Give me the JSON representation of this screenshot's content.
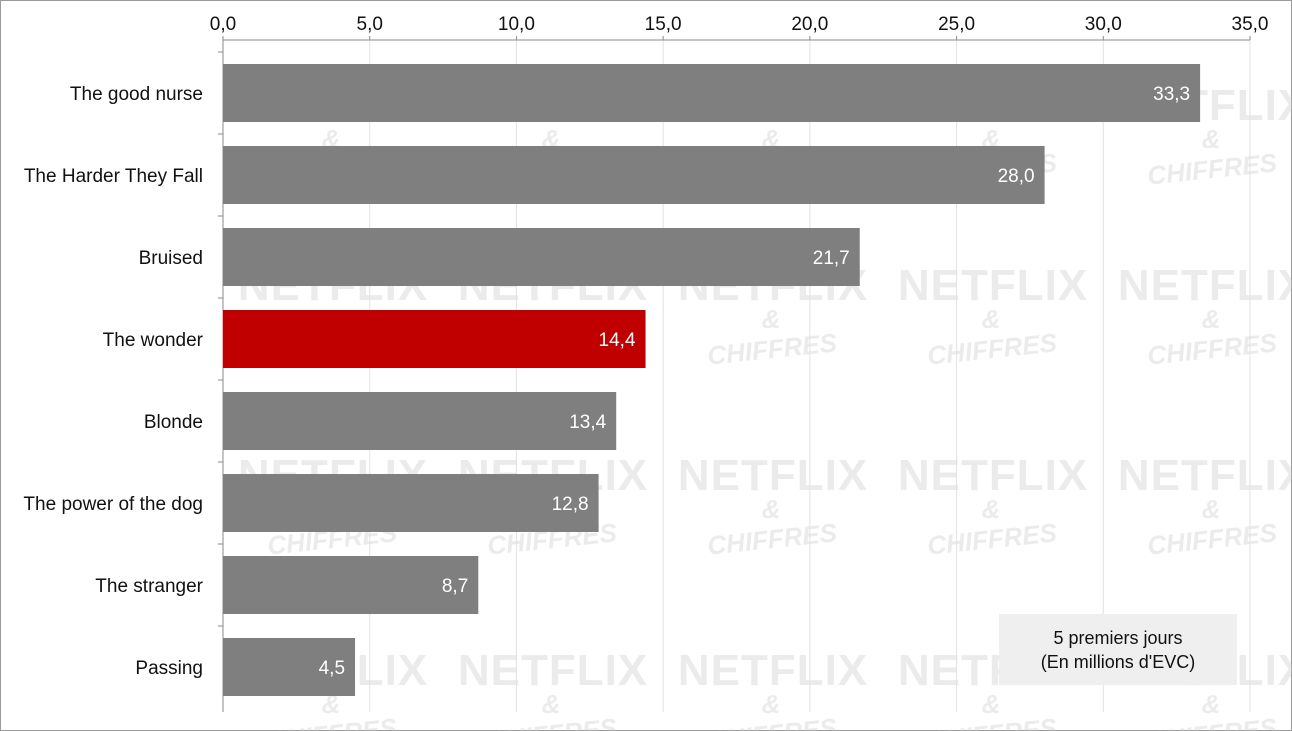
{
  "chart_data": {
    "type": "bar",
    "orientation": "horizontal",
    "categories": [
      "The good nurse",
      "The Harder They Fall",
      "Bruised",
      "The wonder",
      "Blonde",
      "The power of the dog",
      "The stranger",
      "Passing"
    ],
    "values": [
      33.3,
      28.0,
      21.7,
      14.4,
      13.4,
      12.8,
      8.7,
      4.5
    ],
    "value_labels": [
      "33,3",
      "28,0",
      "21,7",
      "14,4",
      "13,4",
      "12,8",
      "8,7",
      "4,5"
    ],
    "xlim": [
      0,
      35
    ],
    "x_ticks": [
      0,
      5,
      10,
      15,
      20,
      25,
      30,
      35
    ],
    "x_tick_labels": [
      "0,0",
      "5,0",
      "10,0",
      "15,0",
      "20,0",
      "25,0",
      "30,0",
      "35,0"
    ],
    "axis_position": "top",
    "grid": true,
    "bar_color": "#7f7f7f",
    "highlight_category": "The wonder",
    "highlight_color": "#c00000",
    "annotation": {
      "line1": "5 premiers jours",
      "line2": "(En millions d'EVC)",
      "position": "bottom-right"
    }
  },
  "watermark": {
    "line1": "NETFLIX",
    "line2": "&",
    "line3": "CHIFFRES"
  }
}
